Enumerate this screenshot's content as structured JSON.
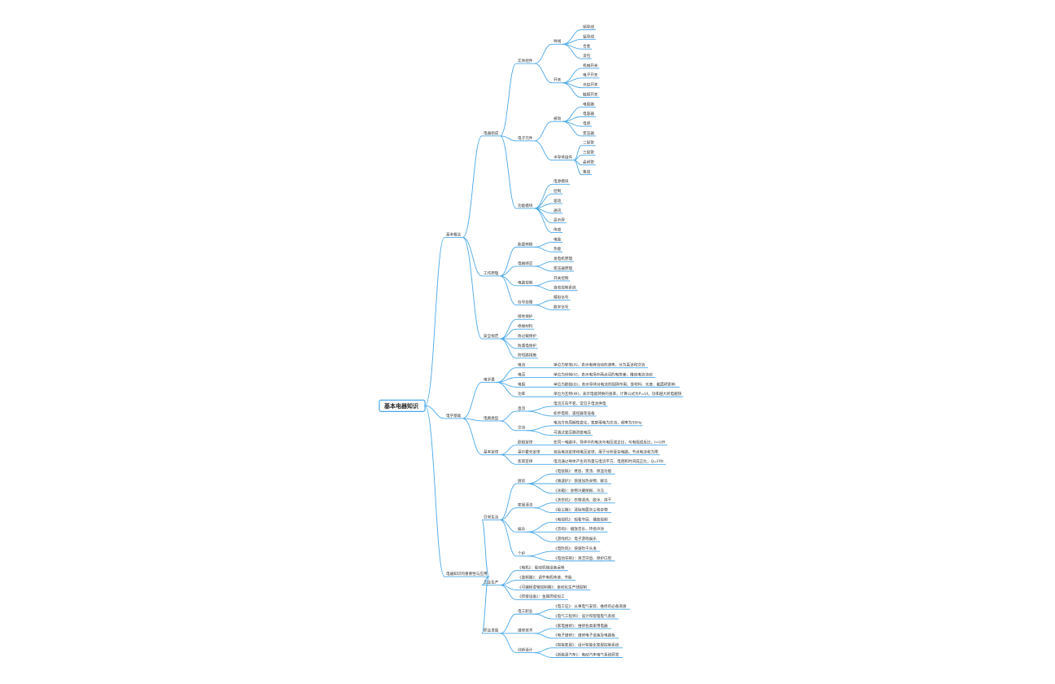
{
  "colors": {
    "line": "#4aa8e8",
    "text": "#333333",
    "background": "#ffffff"
  },
  "mindmap": {
    "root": "基本电器知识",
    "children": [
      {
        "label": "基本概念",
        "children": [
          {
            "label": "电器组成",
            "children": [
              {
                "label": "实体组件",
                "children": [
                  {
                    "label": "导线",
                    "children": [
                      {
                        "label": "铜导线"
                      },
                      {
                        "label": "铝导线"
                      },
                      {
                        "label": "合金"
                      },
                      {
                        "label": "漆包"
                      }
                    ]
                  },
                  {
                    "label": "开关",
                    "children": [
                      {
                        "label": "机械开关"
                      },
                      {
                        "label": "电子开关"
                      },
                      {
                        "label": "光控开关"
                      },
                      {
                        "label": "触摸开关"
                      }
                    ]
                  }
                ]
              },
              {
                "label": "电子元件",
                "children": [
                  {
                    "label": "被动",
                    "children": [
                      {
                        "label": "电阻器"
                      },
                      {
                        "label": "电容器"
                      },
                      {
                        "label": "电感"
                      },
                      {
                        "label": "变压器"
                      }
                    ]
                  },
                  {
                    "label": "半导体组件",
                    "children": [
                      {
                        "label": "二极管"
                      },
                      {
                        "label": "三极管"
                      },
                      {
                        "label": "晶闸管"
                      },
                      {
                        "label": "集成"
                      }
                    ]
                  }
                ]
              },
              {
                "label": "功能模块",
                "children": [
                  {
                    "label": "电源模块"
                  },
                  {
                    "label": "控制"
                  },
                  {
                    "label": "驱动"
                  },
                  {
                    "label": "通讯"
                  },
                  {
                    "label": "显示屏"
                  },
                  {
                    "label": "传感"
                  }
                ]
              }
            ]
          },
          {
            "label": "工作原理",
            "children": [
              {
                "label": "能量转换",
                "children": [
                  {
                    "label": "电能"
                  },
                  {
                    "label": "热能"
                  }
                ]
              },
              {
                "label": "电磁感应",
                "children": [
                  {
                    "label": "发电机原理"
                  },
                  {
                    "label": "变压器原理"
                  }
                ]
              },
              {
                "label": "电路控制",
                "children": [
                  {
                    "label": "开关控制"
                  },
                  {
                    "label": "自动控制系统"
                  }
                ]
              },
              {
                "label": "信号处理",
                "children": [
                  {
                    "label": "模拟信号"
                  },
                  {
                    "label": "数字信号"
                  }
                ]
              }
            ]
          },
          {
            "label": "安全规范",
            "children": [
              {
                "label": "接地保护"
              },
              {
                "label": "绝缘材料"
              },
              {
                "label": "防过载保护"
              },
              {
                "label": "防漏电保护"
              },
              {
                "label": "防短路措施"
              }
            ]
          }
        ]
      },
      {
        "label": "电学基础",
        "children": [
          {
            "label": "电学量",
            "children": [
              {
                "label": "电流",
                "children": [
                  {
                    "label": "单位为安培(A)，表示电荷流动的速率，分为直流和交流"
                  }
                ]
              },
              {
                "label": "电压",
                "children": [
                  {
                    "label": "单位为伏特(V)，表示电场中两点间的电势差，推动电流流动"
                  }
                ]
              },
              {
                "label": "电阻",
                "children": [
                  {
                    "label": "单位为欧姆(Ω)，表示导体对电流的阻碍作用，受材料、长度、截面积影响"
                  }
                ]
              },
              {
                "label": "功率",
                "children": [
                  {
                    "label": "单位为瓦特(W)，表示电能转换的速率，计算公式为P=UI，功率越大耗电越快"
                  }
                ]
              }
            ]
          },
          {
            "label": "电路类型",
            "children": [
              {
                "label": "直流",
                "children": [
                  {
                    "label": "电流方向不变，常见于电池供电"
                  },
                  {
                    "label": "如手电筒、遥控器等设备"
                  }
                ]
              },
              {
                "label": "交流",
                "children": [
                  {
                    "label": "电流方向周期性变化，家庭用电为交流，频率为50Hz"
                  },
                  {
                    "label": "可通过变压器改变电压"
                  }
                ]
              }
            ]
          },
          {
            "label": "基本定律",
            "children": [
              {
                "label": "欧姆定律",
                "children": [
                  {
                    "label": "在同一电路中，导体中的电流与电压成正比，与电阻成反比，I=U/R"
                  }
                ]
              },
              {
                "label": "基尔霍夫定律",
                "children": [
                  {
                    "label": "包括电流定律和电压定律，用于分析复杂电路，节点电流和为零"
                  }
                ]
              },
              {
                "label": "焦耳定律",
                "children": [
                  {
                    "label": "电流通过导体产生的热量与电流平方、电阻和时间成正比，Q=I²Rt"
                  }
                ]
              }
            ]
          }
        ]
      },
      {
        "label": "电器知识的重要性与应用",
        "children": [
          {
            "label": "日常生活",
            "children": [
              {
                "label": "厨房",
                "children": [
                  {
                    "label": "《电饭锅》：煮饭、煲汤、保温功能"
                  },
                  {
                    "label": "《微波炉》：快速加热食物、解冻"
                  },
                  {
                    "label": "《冰箱》：食物冷藏保鲜、冷冻"
                  }
                ]
              },
              {
                "label": "家居清洁",
                "children": [
                  {
                    "label": "《洗衣机》：衣物清洗、脱水、烘干"
                  },
                  {
                    "label": "《吸尘器》：清除地面灰尘和杂物"
                  }
                ]
              },
              {
                "label": "娱乐",
                "children": [
                  {
                    "label": "《电视机》：观看节目、播放视频"
                  },
                  {
                    "label": "《音响》：播放音乐、环绕声效"
                  },
                  {
                    "label": "《游戏机》：电子游戏娱乐"
                  }
                ]
              },
              {
                "label": "个护",
                "children": [
                  {
                    "label": "《电吹风》：快速吹干头发"
                  },
                  {
                    "label": "《电动牙刷》：清洁牙齿、保护口腔"
                  }
                ]
              }
            ]
          },
          {
            "label": "工业生产",
            "children": [
              {
                "label": "《电机》：驱动机械设备运转"
              },
              {
                "label": "《变频器》：调节电机转速、节能"
              },
              {
                "label": "《可编程逻辑控制器》：自动化生产线控制"
              },
              {
                "label": "《焊接设备》：金属焊接加工"
              }
            ]
          },
          {
            "label": "职业发展",
            "children": [
              {
                "label": "电工职业",
                "children": [
                  {
                    "label": "《电工证》：从事电气安装、维修的必备资质"
                  },
                  {
                    "label": "《电气工程师》：设计和管理电气系统"
                  }
                ]
              },
              {
                "label": "维修技术",
                "children": [
                  {
                    "label": "《家电维修》：维修各类家用电器"
                  },
                  {
                    "label": "《电子维修》：维修电子设备及电路板"
                  }
                ]
              },
              {
                "label": "创新设计",
                "children": [
                  {
                    "label": "《智能家居》：设计智能化家居控制系统"
                  },
                  {
                    "label": "《新能源汽车》：电动汽车电气系统研发"
                  }
                ]
              }
            ]
          }
        ]
      }
    ]
  }
}
